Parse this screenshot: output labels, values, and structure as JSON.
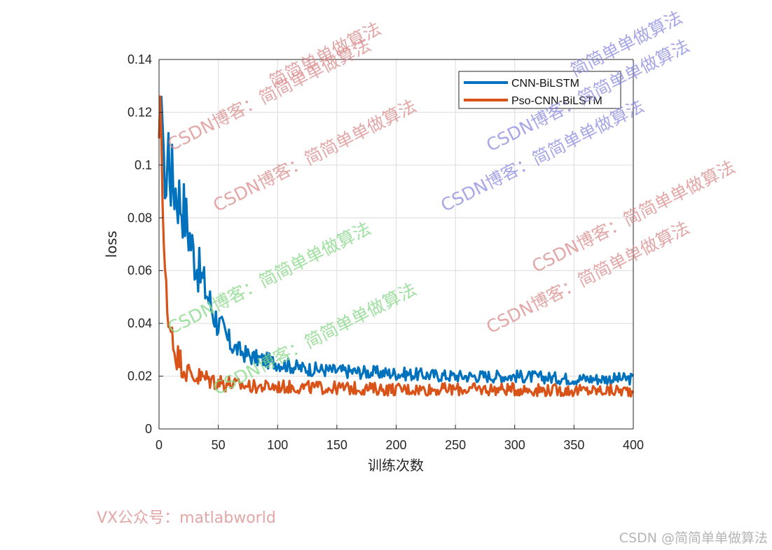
{
  "chart_data": {
    "type": "line",
    "xlabel": "训练次数",
    "ylabel": "loss",
    "xlim": [
      0,
      400
    ],
    "ylim": [
      0,
      0.14
    ],
    "xticks": [
      "0",
      "50",
      "100",
      "150",
      "200",
      "250",
      "300",
      "350",
      "400"
    ],
    "yticks": [
      "0",
      "0.02",
      "0.04",
      "0.06",
      "0.08",
      "0.1",
      "0.12",
      "0.14"
    ],
    "grid": true,
    "legend_position": "top-right",
    "series": [
      {
        "name": "CNN-BiLSTM",
        "color": "#0072BD",
        "x": [
          0,
          2,
          4,
          6,
          8,
          10,
          15,
          20,
          25,
          30,
          35,
          40,
          45,
          50,
          60,
          70,
          80,
          90,
          100,
          120,
          150,
          200,
          250,
          300,
          350,
          400
        ],
        "y": [
          0.11,
          0.126,
          0.105,
          0.092,
          0.108,
          0.096,
          0.09,
          0.085,
          0.075,
          0.065,
          0.058,
          0.052,
          0.045,
          0.04,
          0.032,
          0.029,
          0.027,
          0.026,
          0.025,
          0.023,
          0.022,
          0.021,
          0.02,
          0.02,
          0.019,
          0.019
        ]
      },
      {
        "name": "Pso-CNN-BiLSTM",
        "color": "#D95319",
        "x": [
          0,
          1,
          2,
          3,
          4,
          5,
          6,
          8,
          10,
          12,
          15,
          20,
          25,
          30,
          40,
          50,
          60,
          80,
          100,
          150,
          200,
          250,
          300,
          350,
          400
        ],
        "y": [
          0.11,
          0.126,
          0.11,
          0.085,
          0.07,
          0.06,
          0.05,
          0.035,
          0.045,
          0.032,
          0.028,
          0.024,
          0.021,
          0.02,
          0.019,
          0.018,
          0.017,
          0.016,
          0.016,
          0.0155,
          0.015,
          0.015,
          0.015,
          0.0145,
          0.0145
        ]
      }
    ]
  },
  "watermarks": {
    "chart_overlay": "CSDN博客：简简单单做算法",
    "overlay_short": "简简单单做算法",
    "bottom_left": "VX公众号：matlabworld",
    "bottom_right": "CSDN @简简单单做算法"
  }
}
